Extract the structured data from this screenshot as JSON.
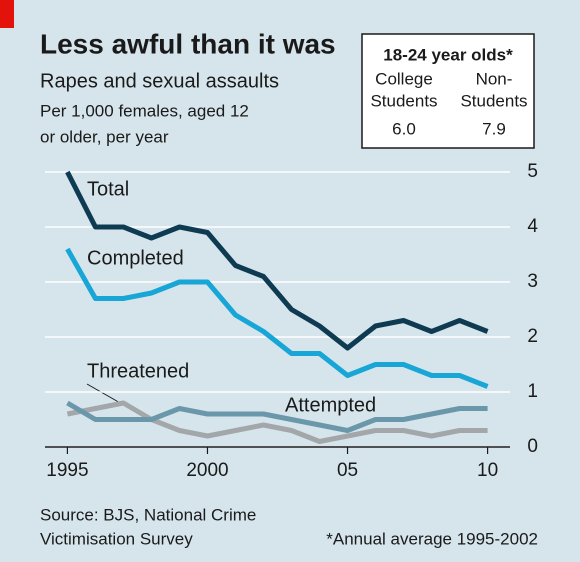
{
  "chart_data": {
    "type": "line",
    "title": "Less awful than it was",
    "subtitle": "Rapes and sexual assaults",
    "description": [
      "Per 1,000 females, aged 12",
      "or older, per year"
    ],
    "x": [
      1995,
      1996,
      1997,
      1998,
      1999,
      2000,
      2001,
      2002,
      2003,
      2004,
      2005,
      2006,
      2007,
      2008,
      2009,
      2010
    ],
    "series": [
      {
        "name": "Total",
        "color": "#0e3a52",
        "values": [
          5.0,
          4.0,
          4.0,
          3.8,
          4.0,
          3.9,
          3.3,
          3.1,
          2.5,
          2.2,
          1.8,
          2.2,
          2.3,
          2.1,
          2.3,
          2.1
        ]
      },
      {
        "name": "Completed",
        "color": "#17a6d6",
        "values": [
          3.6,
          2.7,
          2.7,
          2.8,
          3.0,
          3.0,
          2.4,
          2.1,
          1.7,
          1.7,
          1.3,
          1.5,
          1.5,
          1.3,
          1.3,
          1.1
        ]
      },
      {
        "name": "Threatened",
        "color": "#a3a7aa",
        "values": [
          0.6,
          0.7,
          0.8,
          0.5,
          0.3,
          0.2,
          0.3,
          0.4,
          0.3,
          0.1,
          0.2,
          0.3,
          0.3,
          0.2,
          0.3,
          0.3
        ]
      },
      {
        "name": "Attempted",
        "color": "#6b97aa",
        "values": [
          0.8,
          0.5,
          0.5,
          0.5,
          0.7,
          0.6,
          0.6,
          0.6,
          0.5,
          0.4,
          0.3,
          0.5,
          0.5,
          0.6,
          0.7,
          0.7
        ]
      }
    ],
    "xlim": [
      1994.2,
      2010.8
    ],
    "xticks": [
      1995,
      2000,
      {
        "value": 2005,
        "label": "05"
      },
      {
        "value": 2010,
        "label": "10"
      }
    ],
    "ylim": [
      0,
      5
    ],
    "yticks": [
      0,
      1,
      2,
      3,
      4,
      5
    ],
    "grid": true,
    "inset": {
      "title": "18-24 year olds*",
      "columns": [
        [
          "College",
          "Students"
        ],
        [
          "Non-",
          "Students"
        ]
      ],
      "values": [
        "6.0",
        "7.9"
      ]
    },
    "source": [
      "Source: BJS, National Crime",
      "Victimisation Survey"
    ],
    "footnote": "*Annual average 1995-2002"
  }
}
